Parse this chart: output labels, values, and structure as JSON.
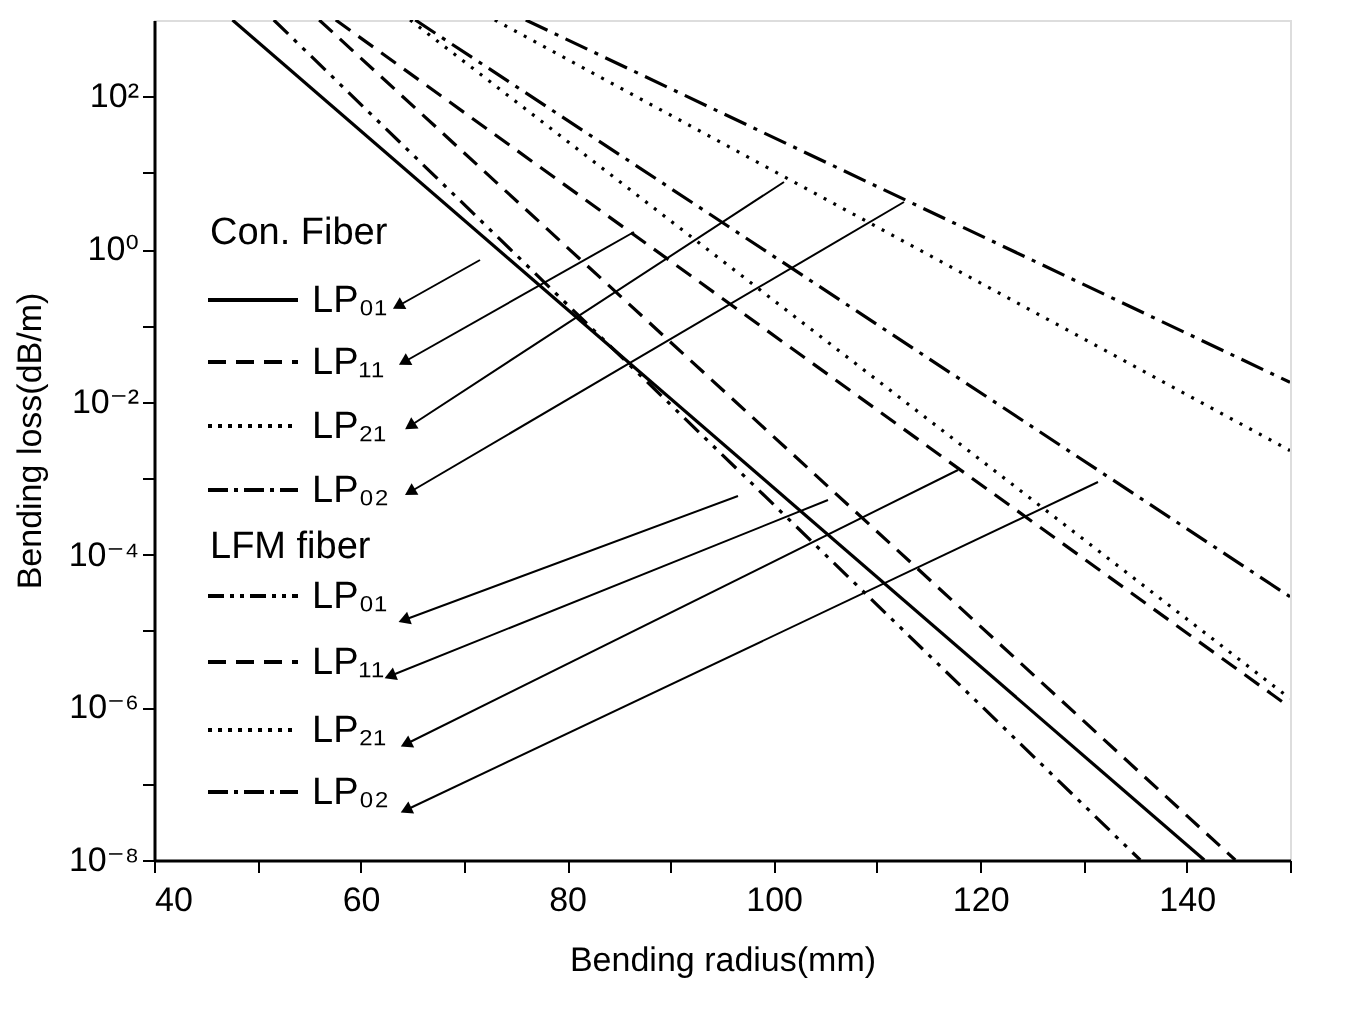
{
  "chart_data": {
    "type": "line",
    "xlabel": "Bending radius(mm)",
    "ylabel": "Bending loss(dB/m)",
    "xlim": [
      40,
      150
    ],
    "ylim": [
      1e-08,
      1000
    ],
    "log": "y",
    "grid": false,
    "legend": "left",
    "xticks": [
      40,
      {
        "value": 50,
        "label": null
      },
      60,
      {
        "value": 70,
        "label": null
      },
      80,
      {
        "value": 90,
        "label": null
      },
      100,
      {
        "value": 110,
        "label": null
      },
      120,
      {
        "value": 130,
        "label": null
      },
      140,
      {
        "value": 150,
        "label": null
      }
    ],
    "yticks": [
      {
        "value": 1e-08,
        "label": "10⁻⁸"
      },
      {
        "value": 1e-07,
        "label": null
      },
      {
        "value": 1e-06,
        "label": "10⁻⁶"
      },
      {
        "value": 1e-05,
        "label": null
      },
      {
        "value": 0.0001,
        "label": "10⁻⁴"
      },
      {
        "value": 0.001,
        "label": null
      },
      {
        "value": 0.01,
        "label": "10⁻²"
      },
      {
        "value": 0.1,
        "label": null
      },
      {
        "value": 1,
        "label": "10⁰"
      },
      {
        "value": 10,
        "label": null
      },
      {
        "value": 100,
        "label": "10²"
      }
    ],
    "annotations": [
      "Con. Fiber",
      "LFM fiber"
    ],
    "series": [
      {
        "name": "LP₀₁",
        "color": "#000000",
        "line_style": "solid",
        "x": [
          47.6,
          141.7
        ],
        "values": [
          1000,
          1e-08
        ]
      },
      {
        "name": "LP₁₁",
        "color": "#000000",
        "line_style": "dashed",
        "x": [
          57.6,
          150
        ],
        "values": [
          1000,
          1e-06
        ]
      },
      {
        "name": "LP₂₁",
        "color": "#000000",
        "line_style": "dotted",
        "x": [
          73,
          150
        ],
        "values": [
          1000,
          0.0023
        ]
      },
      {
        "name": "LP₀₂",
        "color": "#000000",
        "line_style": "dashdot",
        "x": [
          76,
          150
        ],
        "values": [
          1000,
          0.018
        ]
      },
      {
        "name": "LP₀₁",
        "color": "#000000",
        "line_style": "dashdotdot",
        "x": [
          51.6,
          135.5
        ],
        "values": [
          1000,
          1e-08
        ]
      },
      {
        "name": "LP₁₁",
        "color": "#000000",
        "line_style": "dashed",
        "x": [
          56,
          144.7
        ],
        "values": [
          1000,
          1e-08
        ]
      },
      {
        "name": "LP₂₁",
        "color": "#000000",
        "line_style": "dotted",
        "x": [
          64.8,
          150
        ],
        "values": [
          1000,
          1.3e-06
        ]
      },
      {
        "name": "LP₀₂",
        "color": "#000000",
        "line_style": "dashdot",
        "x": [
          65.3,
          150
        ],
        "values": [
          1000,
          2.8e-05
        ]
      }
    ]
  }
}
